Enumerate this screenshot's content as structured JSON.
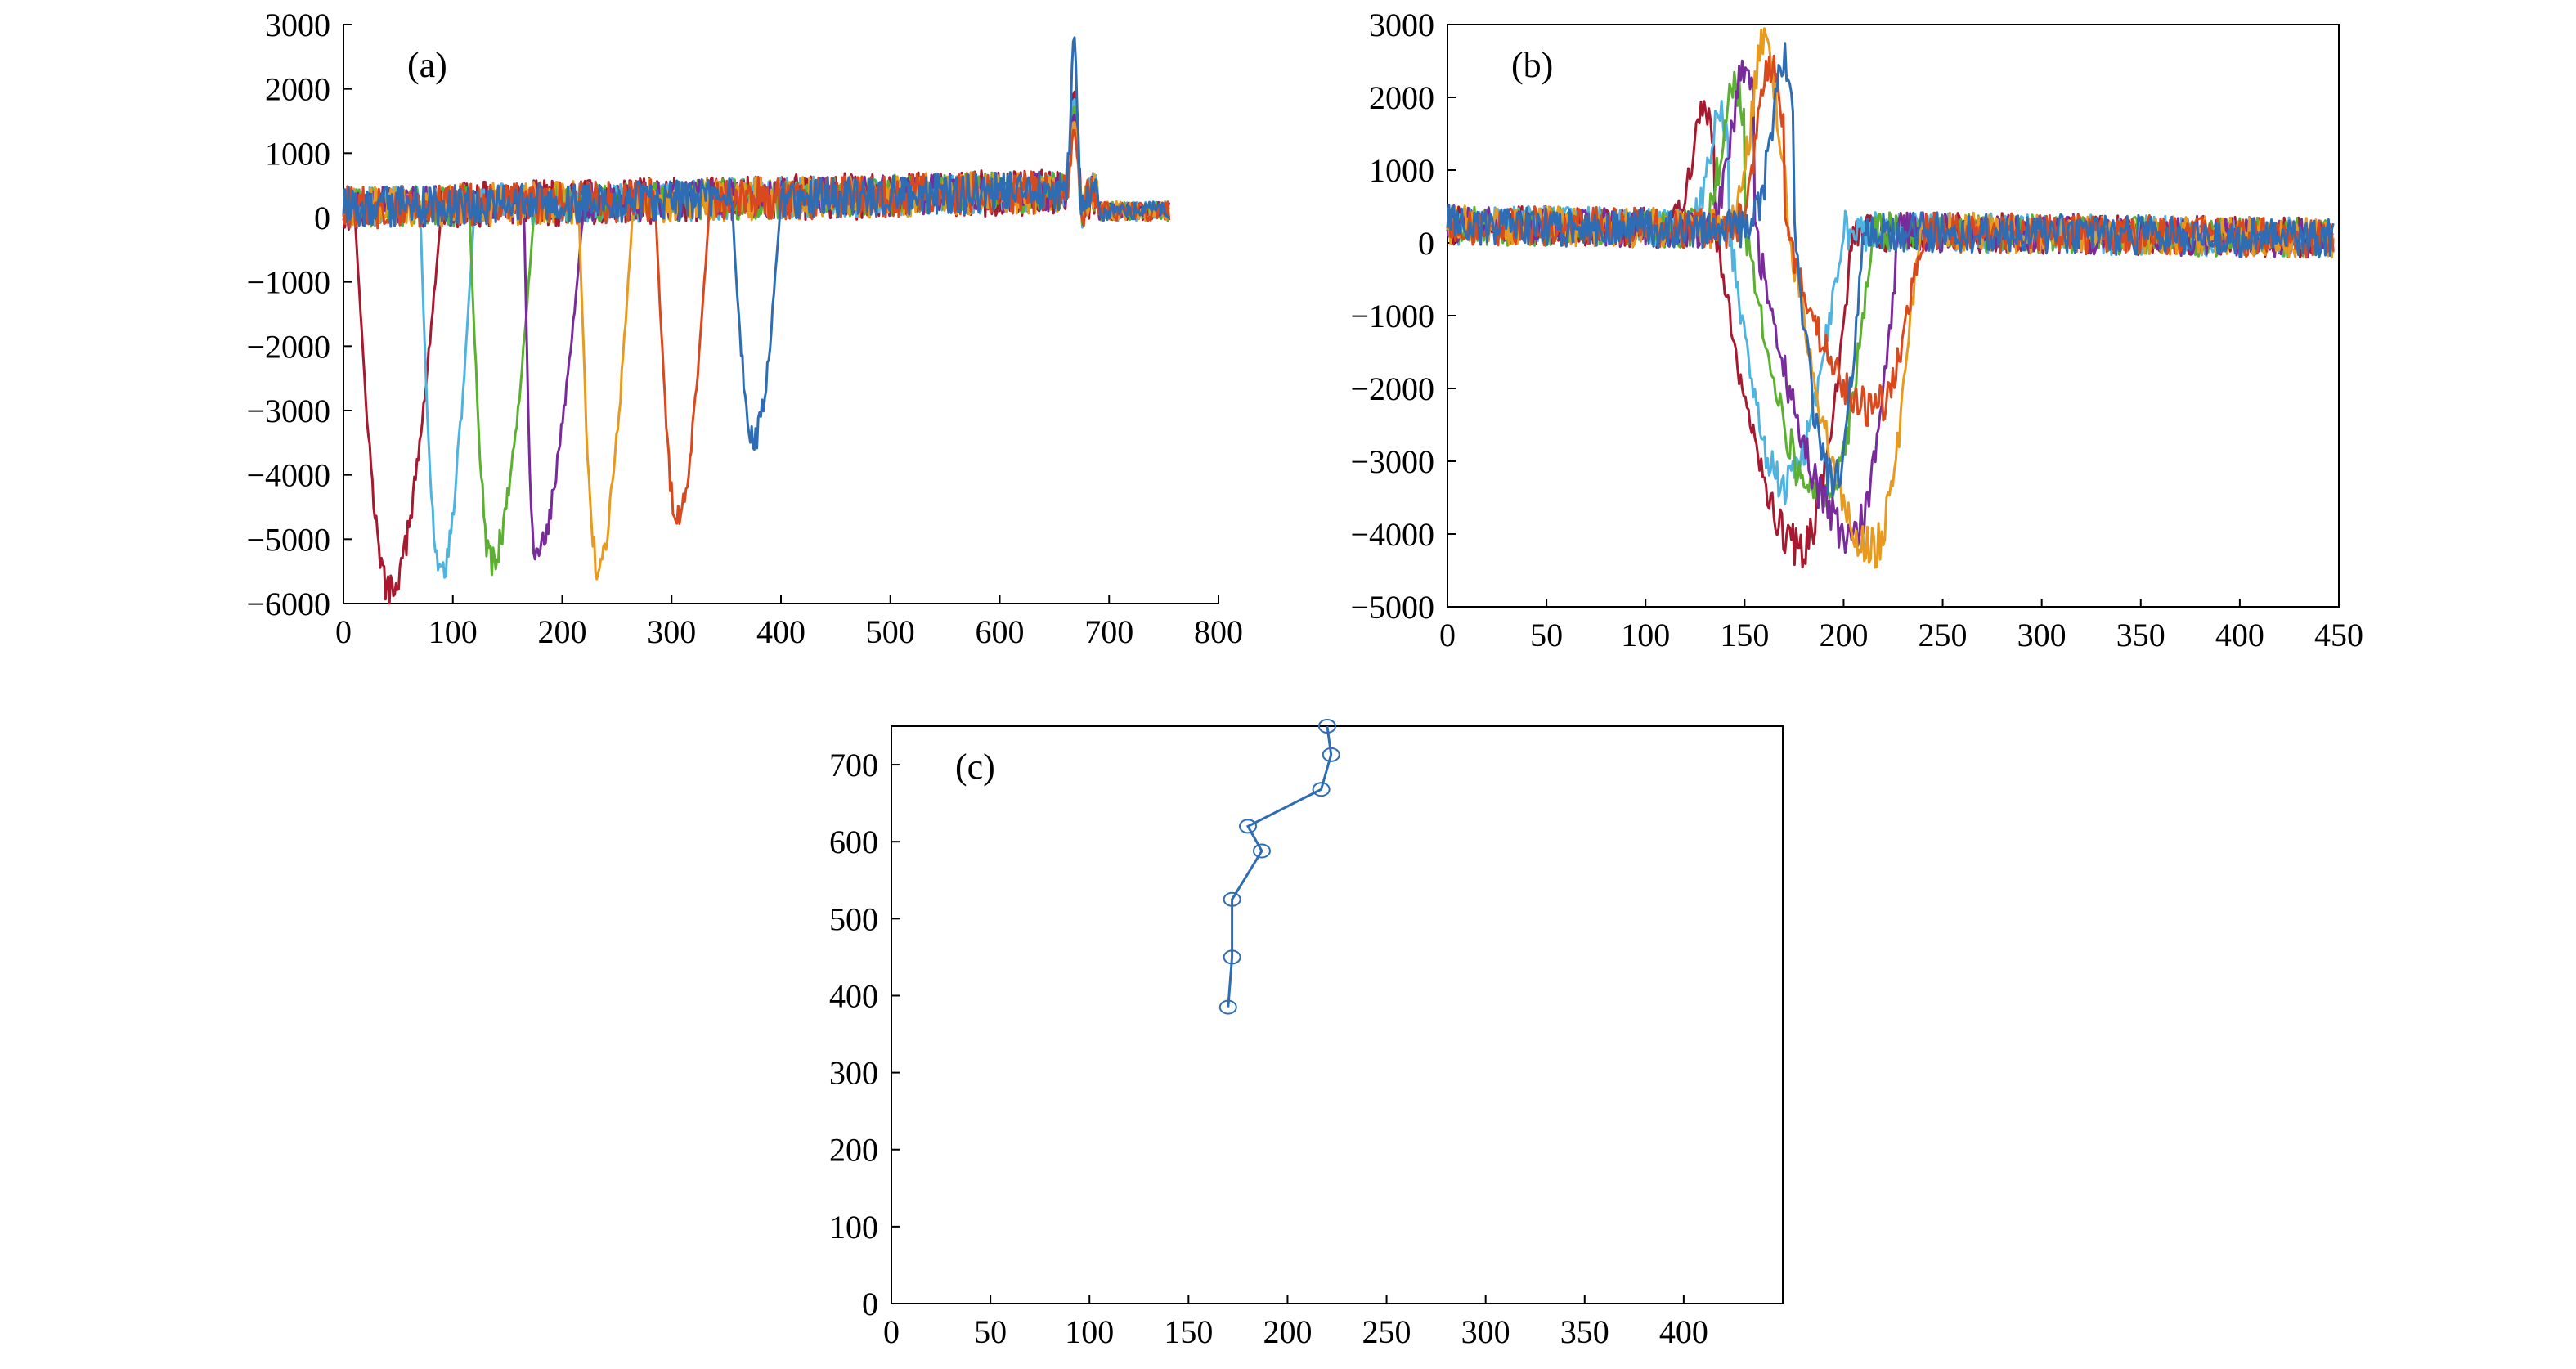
{
  "chart_data": [
    {
      "panel": "(a)",
      "type": "line",
      "xlim": [
        0,
        800
      ],
      "ylim": [
        -6000,
        3000
      ],
      "xticks": [
        0,
        100,
        200,
        300,
        400,
        500,
        600,
        700,
        800
      ],
      "yticks": [
        3000,
        2000,
        1000,
        0,
        -1000,
        -2000,
        -3000,
        -4000,
        -5000,
        -6000
      ],
      "frame": "left-axis-only",
      "grid": false,
      "series": [
        {
          "color": "#A6192E",
          "dip": {
            "start": 10,
            "min_x": 42,
            "min_y": -5800,
            "end": 90
          },
          "noise": 450
        },
        {
          "color": "#4FB3E0",
          "dip": {
            "start": 70,
            "min_x": 88,
            "min_y": -5550,
            "end": 120
          },
          "noise": 400
        },
        {
          "color": "#5BB030",
          "dip": {
            "start": 115,
            "min_x": 135,
            "min_y": -5350,
            "end": 175
          },
          "noise": 400
        },
        {
          "color": "#7A2B9B",
          "dip": {
            "start": 165,
            "min_x": 175,
            "min_y": -5200,
            "end": 220
          },
          "noise": 400
        },
        {
          "color": "#E89A1E",
          "dip": {
            "start": 215,
            "min_x": 232,
            "min_y": -5400,
            "end": 265
          },
          "noise": 420
        },
        {
          "color": "#D9491E",
          "dip": {
            "start": 285,
            "min_x": 305,
            "min_y": -4600,
            "end": 335
          },
          "noise": 420
        },
        {
          "color": "#2E6DB4",
          "dip": {
            "start": 355,
            "min_x": 375,
            "min_y": -3450,
            "end": 400
          },
          "noise": 400,
          "spike": {
            "x": 668,
            "y": 2850
          }
        }
      ]
    },
    {
      "panel": "(b)",
      "type": "line",
      "xlim": [
        0,
        450
      ],
      "ylim": [
        -5000,
        3000
      ],
      "xticks": [
        0,
        50,
        100,
        150,
        200,
        250,
        300,
        350,
        400,
        450
      ],
      "yticks": [
        3000,
        2000,
        1000,
        0,
        -1000,
        -2000,
        -3000,
        -4000,
        -5000
      ],
      "frame": "box",
      "grid": false,
      "series": [
        {
          "color": "#A6192E",
          "peak": {
            "x": 130,
            "y": 1600
          },
          "dip": {
            "start": 135,
            "min_x": 178,
            "min_y": -4200,
            "end": 205
          }
        },
        {
          "color": "#4FB3E0",
          "peak": {
            "x": 138,
            "y": 1500
          },
          "dip": {
            "start": 142,
            "min_x": 170,
            "min_y": -3300,
            "end": 200
          }
        },
        {
          "color": "#5BB030",
          "peak": {
            "x": 145,
            "y": 2000
          },
          "dip": {
            "start": 150,
            "min_x": 190,
            "min_y": -3600,
            "end": 215
          }
        },
        {
          "color": "#7A2B9B",
          "peak": {
            "x": 150,
            "y": 2200
          },
          "dip": {
            "start": 155,
            "min_x": 205,
            "min_y": -4000,
            "end": 228
          }
        },
        {
          "color": "#E89A1E",
          "peak": {
            "x": 160,
            "y": 2650
          },
          "dip": {
            "start": 172,
            "min_x": 215,
            "min_y": -4200,
            "end": 238
          }
        },
        {
          "color": "#D9491E",
          "peak": {
            "x": 163,
            "y": 2300
          },
          "dip": {
            "start": 170,
            "min_x": 215,
            "min_y": -2300,
            "end": 240
          }
        },
        {
          "color": "#2E6DB4",
          "peak": {
            "x": 170,
            "y": 2300
          },
          "dip": {
            "start": 175,
            "min_x": 195,
            "min_y": -3300,
            "end": 210
          }
        }
      ]
    },
    {
      "panel": "(c)",
      "type": "line",
      "xlim": [
        0,
        450
      ],
      "ylim": [
        0,
        750
      ],
      "xticks": [
        0,
        50,
        100,
        150,
        200,
        250,
        300,
        350,
        400
      ],
      "yticks": [
        700,
        600,
        500,
        400,
        300,
        200,
        100,
        0
      ],
      "frame": "box",
      "grid": false,
      "marker": "open-circle",
      "color": "#2E6DB4",
      "points": [
        {
          "x": 220,
          "y": 750
        },
        {
          "x": 222,
          "y": 713
        },
        {
          "x": 217,
          "y": 668
        },
        {
          "x": 180,
          "y": 620
        },
        {
          "x": 187,
          "y": 588
        },
        {
          "x": 172,
          "y": 525
        },
        {
          "x": 172,
          "y": 450
        },
        {
          "x": 170,
          "y": 385
        }
      ]
    }
  ]
}
